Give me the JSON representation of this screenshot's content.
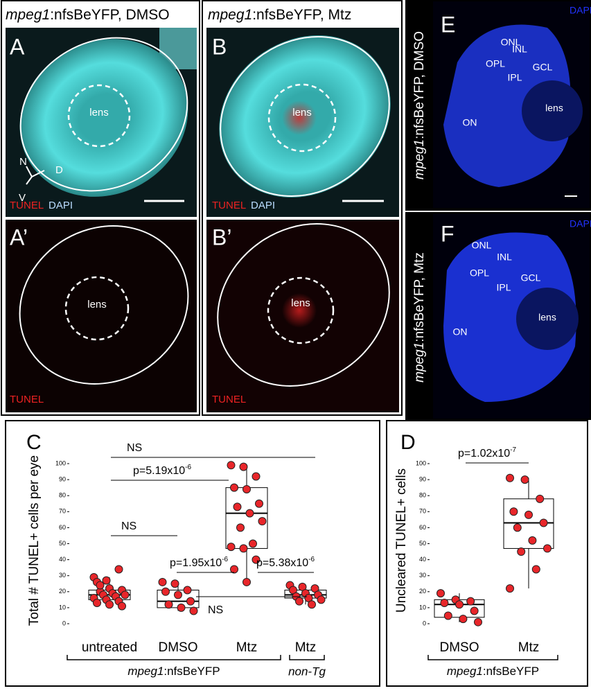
{
  "panels": {
    "A": {
      "label": "A",
      "title": {
        "gene": "mpeg1",
        "rest": ":nfsBeYFP, DMSO"
      },
      "lens": "lens",
      "axes": [
        "N",
        "D",
        "V"
      ],
      "stain": [
        "TUNEL",
        "DAPI"
      ]
    },
    "A_prime": {
      "label": "A’",
      "lens": "lens",
      "stain": "TUNEL"
    },
    "B": {
      "label": "B",
      "title": {
        "gene": "mpeg1",
        "rest": ":nfsBeYFP, Mtz"
      },
      "lens": "lens",
      "stain": [
        "TUNEL",
        "DAPI"
      ]
    },
    "B_prime": {
      "label": "B’",
      "lens": "lens",
      "stain": "TUNEL"
    },
    "E": {
      "label": "E",
      "side_label": {
        "gene": "mpeg1",
        "rest": ":nfsBeYFP,  DMSO"
      },
      "stain": "DAPI",
      "layers": [
        "ONL",
        "INL",
        "OPL",
        "IPL",
        "GCL",
        "lens",
        "ON"
      ]
    },
    "F": {
      "label": "F",
      "side_label": {
        "gene": "mpeg1",
        "rest": ":nfsBeYFP,  Mtz"
      },
      "stain": "DAPI",
      "layers": [
        "ONL",
        "INL",
        "OPL",
        "IPL",
        "GCL",
        "lens",
        "ON"
      ]
    }
  },
  "chart_data": [
    {
      "type": "box",
      "panel_label": "C",
      "ylabel": "Total # TUNEL+ cells per eye",
      "categories": [
        "untreated",
        "DMSO",
        "Mtz",
        "Mtz"
      ],
      "groups": [
        {
          "gene": "mpeg1",
          "rest": ":nfsBeYFP"
        },
        {
          "label": "non-Tg"
        }
      ],
      "color": "#e8262a",
      "boxes": [
        {
          "low": 11,
          "q1": 15,
          "median": 18,
          "q3": 21,
          "high": 29
        },
        {
          "low": 8,
          "q1": 10,
          "median": 14,
          "q3": 21,
          "high": 26
        },
        {
          "low": 26,
          "q1": 47,
          "median": 69,
          "q3": 85,
          "high": 99
        },
        {
          "low": 12,
          "q1": 16,
          "median": 18,
          "q3": 21,
          "high": 24
        }
      ],
      "points": [
        [
          29,
          27,
          34,
          26,
          22,
          21,
          20,
          19,
          18,
          18,
          17,
          16,
          15,
          14,
          13,
          12,
          11,
          24
        ],
        [
          26,
          25,
          21,
          20,
          18,
          14,
          12,
          10,
          8
        ],
        [
          99,
          98,
          92,
          85,
          84,
          75,
          73,
          69,
          64,
          60,
          50,
          48,
          47,
          40,
          34,
          26
        ],
        [
          24,
          23,
          22,
          21,
          19,
          18,
          17,
          16,
          15,
          14,
          12
        ]
      ],
      "ylim": [
        0,
        100
      ],
      "yticks": [
        0,
        10,
        20,
        30,
        40,
        50,
        60,
        70,
        80,
        90,
        100
      ],
      "annotations": [
        {
          "text": "NS"
        },
        {
          "text": "p=5.19x10",
          "sup": "-6"
        },
        {
          "text": "NS"
        },
        {
          "text": "p=1.95x10",
          "sup": "-6"
        },
        {
          "text": "p=5.38x10",
          "sup": "-6"
        },
        {
          "text": "NS"
        }
      ]
    },
    {
      "type": "box",
      "panel_label": "D",
      "ylabel": "Uncleared TUNEL+ cells",
      "categories": [
        "DMSO",
        "Mtz"
      ],
      "groups": [
        {
          "gene": "mpeg1",
          "rest": ":nfsBeYFP"
        }
      ],
      "color": "#e8262a",
      "boxes": [
        {
          "low": 1,
          "q1": 4,
          "median": 12,
          "q3": 15,
          "high": 19
        },
        {
          "low": 22,
          "q1": 47,
          "median": 63,
          "q3": 78,
          "high": 91
        }
      ],
      "points": [
        [
          19,
          15,
          14,
          13,
          12,
          8,
          5,
          3,
          1
        ],
        [
          91,
          90,
          78,
          70,
          68,
          63,
          60,
          52,
          47,
          45,
          34,
          22
        ]
      ],
      "ylim": [
        0,
        100
      ],
      "yticks": [
        0,
        10,
        20,
        30,
        40,
        50,
        60,
        70,
        80,
        90,
        100
      ],
      "annotations": [
        {
          "text": "p=1.02x10",
          "sup": "-7"
        }
      ]
    }
  ]
}
